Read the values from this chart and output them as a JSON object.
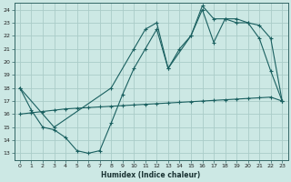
{
  "xlabel": "Humidex (Indice chaleur)",
  "bg_color": "#cce8e4",
  "grid_color": "#aaccc8",
  "line_color": "#1a6060",
  "xlim": [
    -0.5,
    23.5
  ],
  "ylim": [
    12.5,
    24.5
  ],
  "yticks": [
    13,
    14,
    15,
    16,
    17,
    18,
    19,
    20,
    21,
    22,
    23,
    24
  ],
  "xticks": [
    0,
    1,
    2,
    3,
    4,
    5,
    6,
    7,
    8,
    9,
    10,
    11,
    12,
    13,
    14,
    15,
    16,
    17,
    18,
    19,
    20,
    21,
    22,
    23
  ],
  "line1_x": [
    0,
    1,
    2,
    3,
    4,
    5,
    6,
    7,
    8,
    9,
    10,
    11,
    12,
    13,
    14,
    15,
    16,
    17,
    18,
    19,
    20,
    21,
    22,
    23
  ],
  "line1_y": [
    16.0,
    16.1,
    16.2,
    16.3,
    16.4,
    16.45,
    16.5,
    16.55,
    16.6,
    16.65,
    16.7,
    16.75,
    16.8,
    16.85,
    16.9,
    16.95,
    17.0,
    17.05,
    17.1,
    17.15,
    17.2,
    17.25,
    17.3,
    17.0
  ],
  "line2_x": [
    0,
    1,
    2,
    3,
    4,
    5,
    6,
    7,
    8,
    9,
    10,
    11,
    12,
    13,
    14,
    15,
    16,
    17,
    18,
    19,
    20,
    21,
    22,
    23
  ],
  "line2_y": [
    18.0,
    16.3,
    15.0,
    14.8,
    14.2,
    13.2,
    13.0,
    13.2,
    15.3,
    17.5,
    19.5,
    21.0,
    22.5,
    19.5,
    21.0,
    22.0,
    24.0,
    21.5,
    23.3,
    23.3,
    23.0,
    21.8,
    19.3,
    17.0
  ],
  "line3_x": [
    0,
    3,
    8,
    10,
    11,
    12,
    13,
    15,
    16,
    17,
    18,
    19,
    20,
    21,
    22,
    23
  ],
  "line3_y": [
    18.0,
    15.0,
    18.0,
    21.0,
    22.5,
    23.0,
    19.5,
    22.0,
    24.3,
    23.3,
    23.3,
    23.0,
    23.0,
    22.8,
    21.8,
    17.0
  ]
}
